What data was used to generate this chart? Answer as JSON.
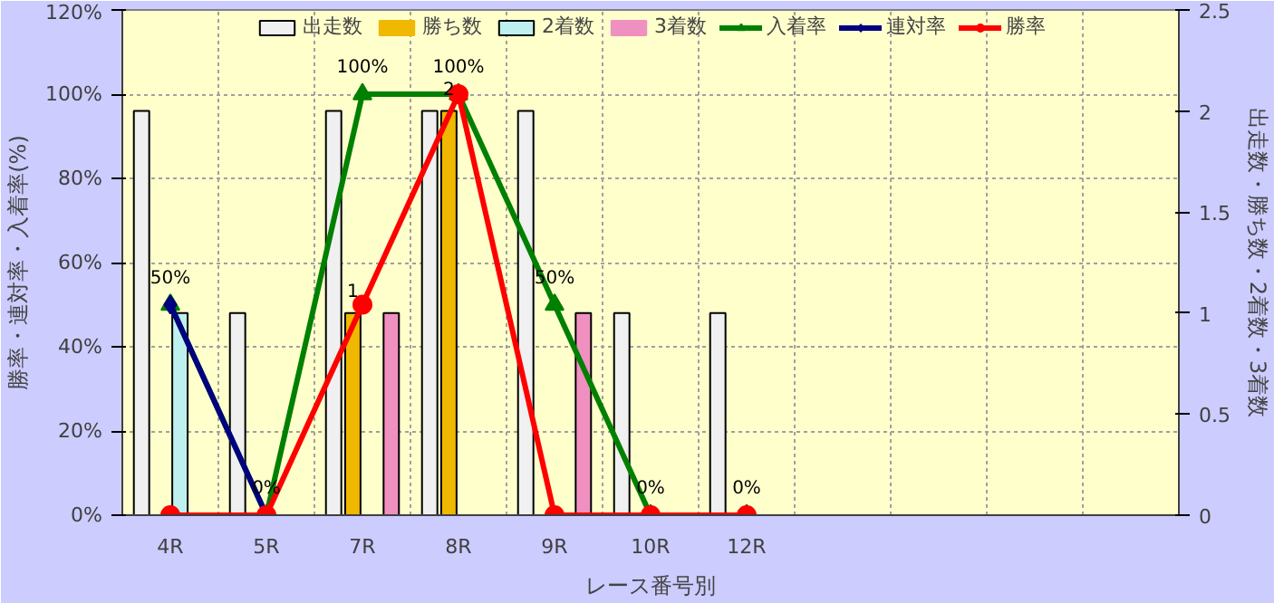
{
  "chart_data": {
    "type": "bar",
    "categories": [
      "4R",
      "5R",
      "7R",
      "8R",
      "9R",
      "10R",
      "12R",
      null,
      null,
      null,
      null
    ],
    "xlabel": "レース番号別",
    "ylabel": "勝率・連対率・入着率(%)",
    "y2label": "出走数・勝ち数・2着数・3着数",
    "ylim": [
      0,
      120
    ],
    "yticks": [
      {
        "value": 0,
        "label": "0%"
      },
      {
        "value": 20,
        "label": "20%"
      },
      {
        "value": 40,
        "label": "40%"
      },
      {
        "value": 60,
        "label": "60%"
      },
      {
        "value": 80,
        "label": "80%"
      },
      {
        "value": 100,
        "label": "100%"
      },
      {
        "value": 120,
        "label": "120%"
      }
    ],
    "y2lim": [
      0,
      2.5
    ],
    "y2ticks": [
      0,
      0.5,
      1,
      1.5,
      2,
      2.5
    ],
    "grid": true,
    "legend": "top",
    "series": [
      {
        "name": "出走数",
        "axis": "y2",
        "color": "#f0f0f0",
        "values": [
          2,
          1,
          2,
          2,
          2,
          1,
          1,
          null,
          null,
          null,
          null
        ]
      },
      {
        "name": "勝ち数",
        "axis": "y2",
        "color": "#f0b800",
        "values": [
          0,
          0,
          1,
          2,
          0,
          0,
          0,
          null,
          null,
          null,
          null
        ],
        "value_labels": [
          null,
          null,
          "1",
          "2",
          null,
          null,
          null,
          null,
          null,
          null,
          null
        ]
      },
      {
        "name": "2着数",
        "axis": "y2",
        "color": "#bff0f0",
        "values": [
          1,
          0,
          0,
          0,
          0,
          0,
          0,
          null,
          null,
          null,
          null
        ]
      },
      {
        "name": "3着数",
        "axis": "y2",
        "color": "#f090c0",
        "values": [
          0,
          0,
          1,
          0,
          1,
          0,
          0,
          null,
          null,
          null,
          null
        ]
      },
      {
        "name": "入着率",
        "type": "line",
        "color": "#008000",
        "marker": "triangle",
        "values": [
          50,
          0,
          100,
          100,
          50,
          0,
          0,
          null,
          null,
          null,
          null
        ],
        "value_labels": [
          "50%",
          "0%",
          "100%",
          "100%",
          "50%",
          "0%",
          "0%",
          null,
          null,
          null,
          null
        ]
      },
      {
        "name": "連対率",
        "type": "line",
        "color": "#000080",
        "marker": "diamond",
        "values": [
          50,
          0,
          null,
          null,
          null,
          null,
          null,
          null,
          null,
          null,
          null
        ]
      },
      {
        "name": "勝率",
        "type": "line",
        "color": "#ff0000",
        "marker": "circle",
        "values": [
          0,
          0,
          50,
          100,
          0,
          0,
          0,
          null,
          null,
          null,
          null
        ]
      }
    ]
  }
}
